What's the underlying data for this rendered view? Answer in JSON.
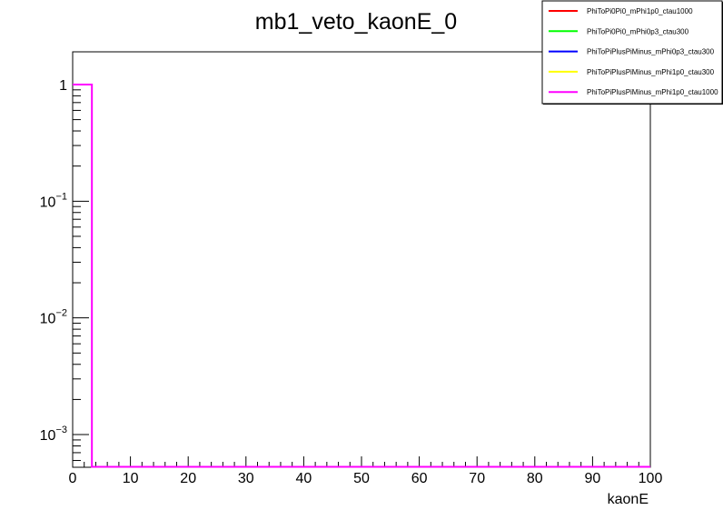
{
  "chart_data": {
    "type": "histogram",
    "title": "mb1_veto_kaonE_0",
    "xlabel": "kaonE",
    "ylabel": "",
    "xlim": [
      0,
      100
    ],
    "ylim_log10": [
      -3.28,
      0.28
    ],
    "yscale": "log",
    "grid": false,
    "legend_position": "top-right",
    "x_ticks": [
      "0",
      "10",
      "20",
      "30",
      "40",
      "50",
      "60",
      "70",
      "80",
      "90",
      "100"
    ],
    "y_ticks": [
      {
        "base": "1",
        "exp": "",
        "value": 1
      },
      {
        "base": "10",
        "exp": "−1",
        "value": 0.1
      },
      {
        "base": "10",
        "exp": "−2",
        "value": 0.01
      },
      {
        "base": "10",
        "exp": "−3",
        "value": 0.001
      }
    ],
    "bins": {
      "x_edges": [
        0,
        3.33
      ],
      "value": 1
    },
    "series": [
      {
        "name": "PhiToPi0Pi0_mPhi1p0_ctau1000",
        "color": "#ff0000"
      },
      {
        "name": "PhiToPi0Pi0_mPhi0p3_ctau300",
        "color": "#00ff00"
      },
      {
        "name": "PhiToPiPlusPiMinus_mPhi0p3_ctau300",
        "color": "#0000ff"
      },
      {
        "name": "PhiToPiPlusPiMinus_mPhi1p0_ctau300",
        "color": "#ffff00"
      },
      {
        "name": "PhiToPiPlusPiMinus_mPhi1p0_ctau1000",
        "color": "#ff00ff"
      }
    ]
  }
}
